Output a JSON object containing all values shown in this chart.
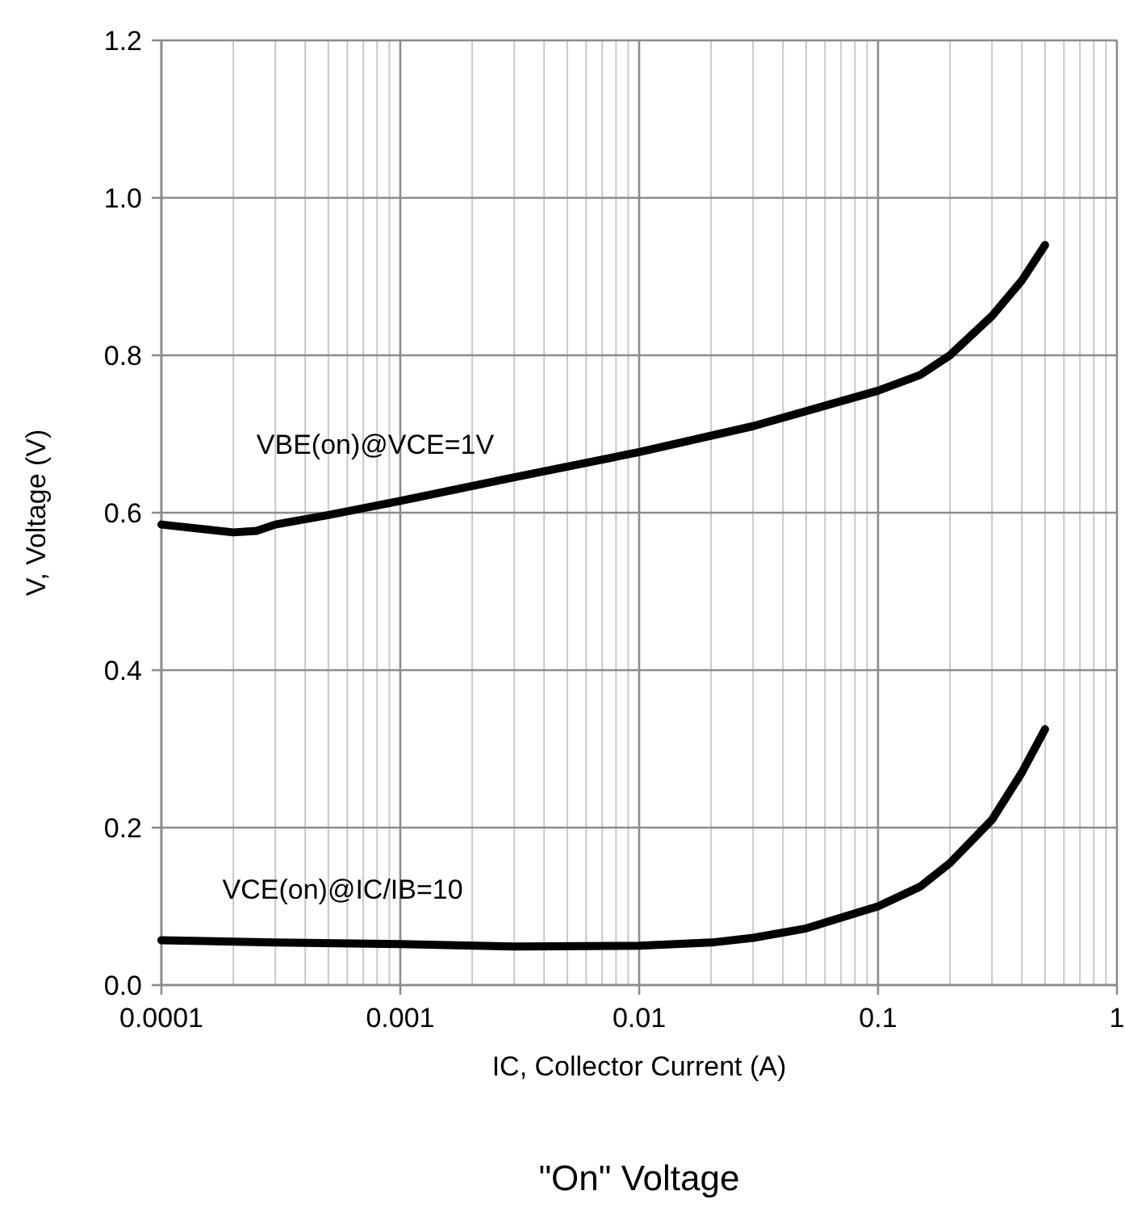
{
  "chart_data": {
    "type": "line",
    "title": "\"On\" Voltage",
    "xlabel": "IC, Collector Current (A)",
    "ylabel": "V, Voltage (V)",
    "log": "x",
    "grid": true,
    "legend": false,
    "marker": "none",
    "line_style": "solid",
    "xlim": [
      0.0001,
      1
    ],
    "xticks": [
      0.0001,
      0.001,
      0.01,
      0.1,
      1
    ],
    "ylim": [
      0,
      1.2
    ],
    "yticks": [
      {
        "value": 0,
        "label": "0.0"
      },
      0.2,
      0.4,
      0.6,
      0.8,
      {
        "value": 1,
        "label": "1.0"
      },
      1.2
    ],
    "series": [
      {
        "name": "VBE(on)@VCE=1V",
        "color": "#000000",
        "x": [
          0.0001,
          0.0002,
          0.00025,
          0.0003,
          0.0005,
          0.001,
          0.003,
          0.01,
          0.03,
          0.1,
          0.15,
          0.2,
          0.3,
          0.4,
          0.5
        ],
        "values": [
          0.585,
          0.575,
          0.577,
          0.585,
          0.597,
          0.615,
          0.645,
          0.677,
          0.71,
          0.755,
          0.775,
          0.8,
          0.85,
          0.895,
          0.94
        ]
      },
      {
        "name": "VCE(on)@IC/IB=10",
        "color": "#000000",
        "x": [
          0.0001,
          0.0003,
          0.001,
          0.003,
          0.01,
          0.02,
          0.03,
          0.05,
          0.1,
          0.15,
          0.2,
          0.3,
          0.4,
          0.5
        ],
        "values": [
          0.057,
          0.054,
          0.052,
          0.049,
          0.05,
          0.054,
          0.06,
          0.072,
          0.1,
          0.125,
          0.155,
          0.21,
          0.27,
          0.325
        ]
      }
    ]
  }
}
